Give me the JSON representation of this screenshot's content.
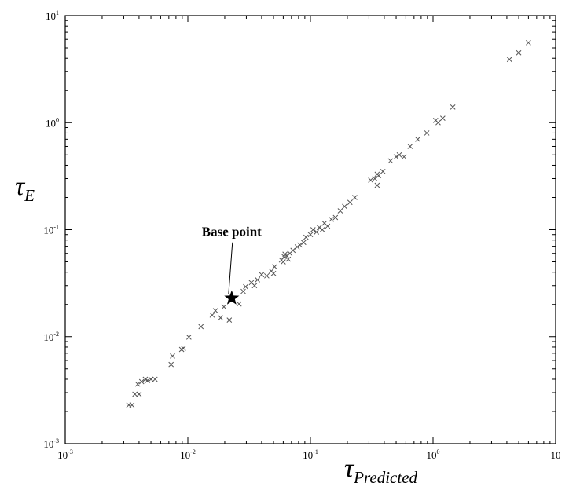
{
  "chart_data": {
    "type": "scatter",
    "title": "",
    "xscale": "log",
    "yscale": "log",
    "xlim": [
      0.001,
      10
    ],
    "ylim": [
      0.001,
      10
    ],
    "grid": false,
    "x_ticks": [
      {
        "base": "10",
        "exp": "-3"
      },
      {
        "base": "10",
        "exp": "-2"
      },
      {
        "base": "10",
        "exp": "-1"
      },
      {
        "base": "10",
        "exp": "0"
      },
      {
        "base": "10",
        "exp": ""
      }
    ],
    "y_ticks": [
      {
        "base": "10",
        "exp": "-3"
      },
      {
        "base": "10",
        "exp": "-2"
      },
      {
        "base": "10",
        "exp": "-1"
      },
      {
        "base": "10",
        "exp": "0"
      },
      {
        "base": "10",
        "exp": "1"
      }
    ],
    "xlabel": {
      "symbol": "τ",
      "sub": "Predicted"
    },
    "ylabel": {
      "symbol": "τ",
      "sub": "E"
    },
    "marker_color": "#555555",
    "series": [
      {
        "marker": "x",
        "points": [
          [
            0.0033,
            0.0023
          ],
          [
            0.0035,
            0.0023
          ],
          [
            0.0037,
            0.0029
          ],
          [
            0.004,
            0.0029
          ],
          [
            0.0039,
            0.0036
          ],
          [
            0.0042,
            0.0038
          ],
          [
            0.0045,
            0.004
          ],
          [
            0.0047,
            0.0039
          ],
          [
            0.005,
            0.004
          ],
          [
            0.0054,
            0.004
          ],
          [
            0.0073,
            0.0055
          ],
          [
            0.0075,
            0.0066
          ],
          [
            0.0089,
            0.0076
          ],
          [
            0.0092,
            0.0078
          ],
          [
            0.0102,
            0.0099
          ],
          [
            0.0128,
            0.0124
          ],
          [
            0.0158,
            0.0159
          ],
          [
            0.0168,
            0.0175
          ],
          [
            0.0185,
            0.015
          ],
          [
            0.0197,
            0.019
          ],
          [
            0.0218,
            0.0143
          ],
          [
            0.0262,
            0.0202
          ],
          [
            0.0283,
            0.0265
          ],
          [
            0.0296,
            0.0293
          ],
          [
            0.033,
            0.032
          ],
          [
            0.035,
            0.03
          ],
          [
            0.037,
            0.034
          ],
          [
            0.04,
            0.038
          ],
          [
            0.044,
            0.037
          ],
          [
            0.048,
            0.041
          ],
          [
            0.05,
            0.039
          ],
          [
            0.051,
            0.045
          ],
          [
            0.058,
            0.052
          ],
          [
            0.06,
            0.05
          ],
          [
            0.061,
            0.056
          ],
          [
            0.062,
            0.059
          ],
          [
            0.064,
            0.057
          ],
          [
            0.066,
            0.053
          ],
          [
            0.068,
            0.06
          ],
          [
            0.072,
            0.064
          ],
          [
            0.078,
            0.069
          ],
          [
            0.082,
            0.072
          ],
          [
            0.088,
            0.076
          ],
          [
            0.092,
            0.085
          ],
          [
            0.1,
            0.09
          ],
          [
            0.105,
            0.1
          ],
          [
            0.112,
            0.095
          ],
          [
            0.118,
            0.105
          ],
          [
            0.125,
            0.1
          ],
          [
            0.13,
            0.115
          ],
          [
            0.138,
            0.108
          ],
          [
            0.148,
            0.125
          ],
          [
            0.16,
            0.13
          ],
          [
            0.175,
            0.15
          ],
          [
            0.19,
            0.165
          ],
          [
            0.21,
            0.18
          ],
          [
            0.23,
            0.2
          ],
          [
            0.31,
            0.29
          ],
          [
            0.335,
            0.3
          ],
          [
            0.35,
            0.33
          ],
          [
            0.35,
            0.26
          ],
          [
            0.36,
            0.32
          ],
          [
            0.39,
            0.35
          ],
          [
            0.45,
            0.44
          ],
          [
            0.5,
            0.48
          ],
          [
            0.53,
            0.5
          ],
          [
            0.58,
            0.48
          ],
          [
            0.65,
            0.6
          ],
          [
            0.75,
            0.7
          ],
          [
            0.89,
            0.8
          ],
          [
            1.05,
            1.05
          ],
          [
            1.1,
            1.0
          ],
          [
            1.2,
            1.1
          ],
          [
            1.45,
            1.4
          ],
          [
            4.2,
            3.9
          ],
          [
            5.0,
            4.5
          ],
          [
            6.0,
            5.6
          ]
        ]
      },
      {
        "marker": "star",
        "points": [
          [
            0.0228,
            0.0229
          ]
        ]
      }
    ],
    "annotation": {
      "text": "Base point",
      "points_to": [
        0.0228,
        0.0229
      ],
      "label_at": [
        0.013,
        0.087
      ]
    }
  }
}
